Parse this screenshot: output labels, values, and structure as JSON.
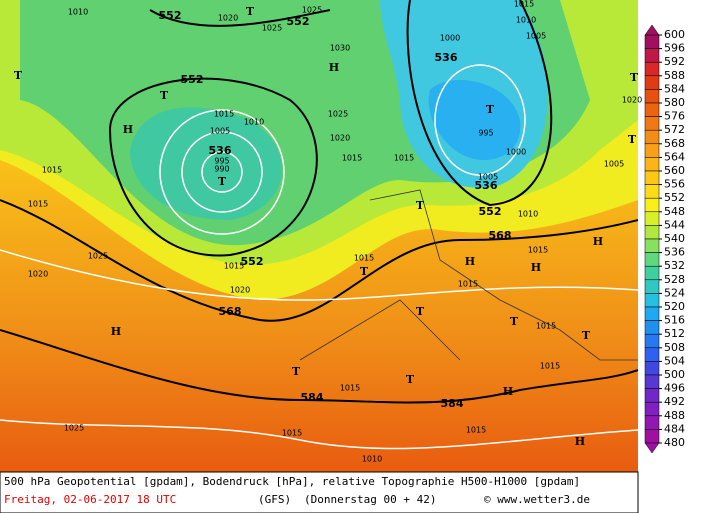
{
  "map": {
    "labels": [
      "1010",
      "552",
      "1020",
      "T",
      "552",
      "1025",
      "1025",
      "1030",
      "H",
      "T",
      "552",
      "H",
      "T",
      "1015",
      "1010",
      "1005",
      "536",
      "995",
      "990",
      "T",
      "1020",
      "1025",
      "1015",
      "1015",
      "1000",
      "536",
      "T",
      "995",
      "1000",
      "536",
      "1005",
      "552",
      "T",
      "1010",
      "568",
      "1015",
      "H",
      "H",
      "H",
      "1015",
      "T",
      "552",
      "1015",
      "1020",
      "568",
      "1015",
      "1015",
      "1020",
      "1025",
      "H",
      "T",
      "T",
      "1015",
      "T",
      "1015",
      "T",
      "T",
      "584",
      "584",
      "1015",
      "1015",
      "H",
      "1015",
      "1015",
      "1025",
      "1010",
      "H",
      "1015",
      "1010",
      "1005",
      "T",
      "1005",
      "T",
      "1020"
    ]
  },
  "legend": {
    "levels": [
      600,
      596,
      592,
      588,
      584,
      580,
      576,
      572,
      568,
      564,
      560,
      556,
      552,
      548,
      544,
      540,
      536,
      532,
      528,
      524,
      520,
      516,
      512,
      508,
      504,
      500,
      496,
      492,
      488,
      484,
      480
    ],
    "colors": [
      "#a01060",
      "#c01848",
      "#d82828",
      "#e03c14",
      "#e85010",
      "#ec6410",
      "#f07818",
      "#f48c18",
      "#f8a018",
      "#fcb418",
      "#fcc818",
      "#fcdc18",
      "#f8f018",
      "#d8f028",
      "#b0e840",
      "#88e060",
      "#60d880",
      "#40d0a0",
      "#30c8c0",
      "#28c0e0",
      "#20a8f0",
      "#2090f0",
      "#2878f0",
      "#3060f0",
      "#4048e0",
      "#5838d0",
      "#7028c8",
      "#8020c0",
      "#9018b0",
      "#a010a0"
    ]
  },
  "footer": {
    "line1": "500 hPa Geopotential [gpdam], Bodendruck [hPa], relative Topographie H500-H1000 [gpdam]",
    "date": "Freitag, 02-06-2017  18 UTC",
    "model": "(GFS)",
    "run": "(Donnerstag 00 + 42)",
    "credit": "© www.wetter3.de"
  }
}
